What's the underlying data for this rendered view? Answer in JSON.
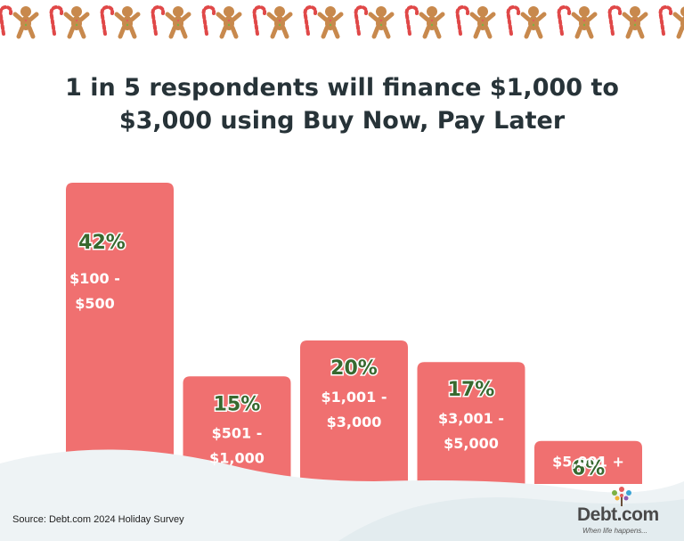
{
  "chart_data": {
    "type": "bar",
    "title": "1 in 5 respondents will finance $1,000 to $3,000 using Buy Now, Pay Later",
    "title_lines": [
      "1 in 5 respondents will finance $1,000 to",
      "$3,000 using Buy Now, Pay Later"
    ],
    "categories": [
      [
        "$100 -",
        "$500"
      ],
      [
        "$501 -",
        "$1,000"
      ],
      [
        "$1,001 -",
        "$3,000"
      ],
      [
        "$3,001 -",
        "$5,000"
      ],
      [
        "$5,001 +"
      ]
    ],
    "values": [
      42,
      15,
      20,
      17,
      6
    ],
    "value_labels": [
      "42%",
      "15%",
      "20%",
      "17%",
      "6%"
    ],
    "unit": "%",
    "grid": false,
    "legend": "none"
  },
  "colors": {
    "bar": "#f07070",
    "value_label": "#38692f",
    "title": "#273338",
    "snow": "#eef3f5"
  },
  "footer": {
    "source": "Source: Debt.com 2024 Holiday Survey",
    "logo_name": "Debt.com",
    "logo_tagline": "When life happens..."
  },
  "decor": {
    "border_icons": [
      "candy-cane-icon",
      "gingerbread-man-icon"
    ]
  }
}
